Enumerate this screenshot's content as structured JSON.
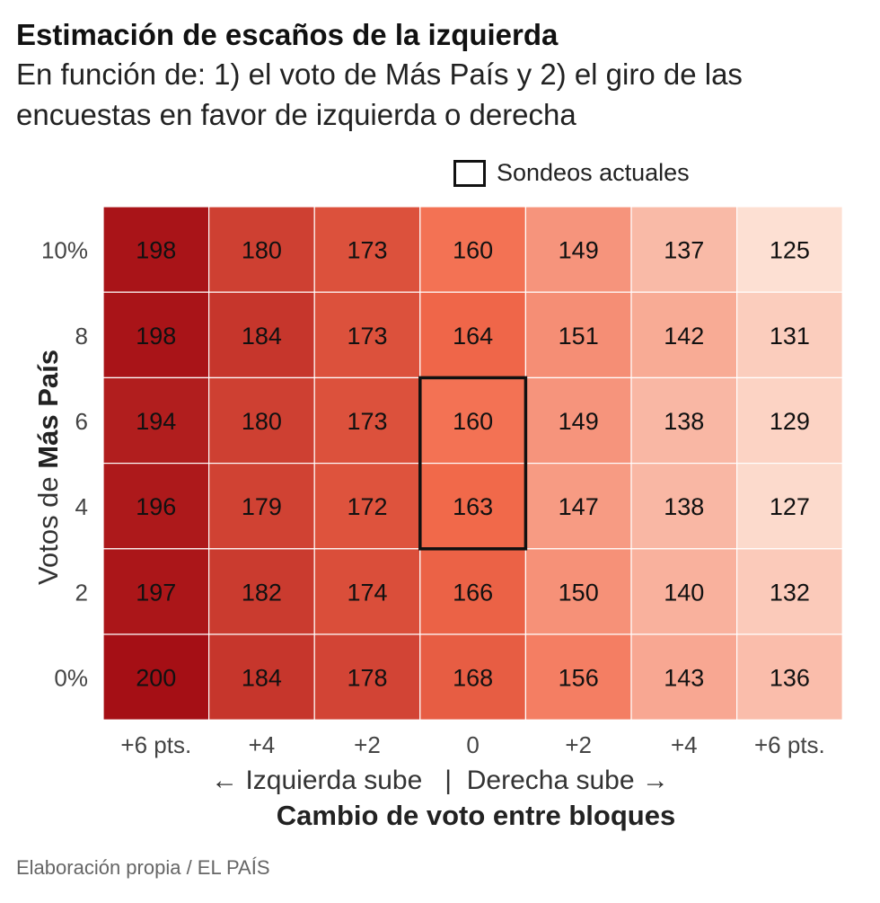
{
  "header": {
    "title": "Estimación de escaños de la izquierda",
    "subtitle": "En función de: 1) el voto de Más País y 2) el giro de las encuestas en favor de izquierda o derecha"
  },
  "legend": {
    "label": "Sondeos actuales"
  },
  "axis": {
    "ylabel_prefix": "Votos de ",
    "ylabel_bold": "Más País",
    "xlabel_left": "← Izquierda sube",
    "xlabel_sep": "|",
    "xlabel_right": "Derecha sube →",
    "xlabel": "Cambio de voto entre bloques"
  },
  "source": "Elaboración propia / EL PAÍS",
  "chart_data": {
    "type": "heatmap",
    "title": "Estimación de escaños de la izquierda",
    "xlabel": "Cambio de voto entre bloques",
    "ylabel": "Votos de Más País",
    "x_categories": [
      "+6 pts.",
      "+4",
      "+2",
      "0",
      "+2",
      "+4",
      "+6 pts."
    ],
    "y_categories": [
      "10%",
      "8",
      "6",
      "4",
      "2",
      "0%"
    ],
    "values": [
      [
        198,
        180,
        173,
        160,
        149,
        137,
        125
      ],
      [
        198,
        184,
        173,
        164,
        151,
        142,
        131
      ],
      [
        194,
        180,
        173,
        160,
        149,
        138,
        129
      ],
      [
        196,
        179,
        172,
        163,
        147,
        138,
        127
      ],
      [
        197,
        182,
        174,
        166,
        150,
        140,
        132
      ],
      [
        200,
        184,
        178,
        168,
        156,
        143,
        136
      ]
    ],
    "highlight": {
      "label": "Sondeos actuales",
      "column": 3,
      "rows": [
        2,
        3
      ]
    },
    "color_scale": {
      "low": "#fde0d3",
      "mid": "#f26a4b",
      "high": "#a50f15"
    }
  }
}
